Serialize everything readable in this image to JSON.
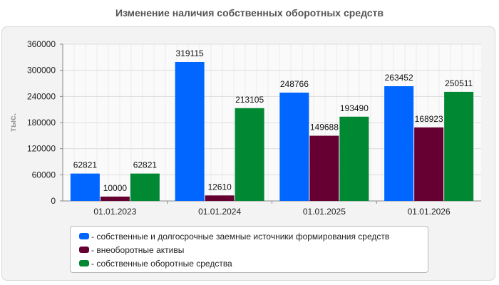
{
  "chart_data": {
    "type": "bar",
    "title": "Изменение наличия собственных оборотных средств",
    "ylabel": "тыс.",
    "xlabel": "",
    "categories": [
      "01.01.2023",
      "01.01.2024",
      "01.01.2025",
      "01.01.2026"
    ],
    "ylim": [
      0,
      360000
    ],
    "yticks": [
      0,
      60000,
      120000,
      180000,
      240000,
      300000,
      360000
    ],
    "series": [
      {
        "name": "- собственные и долгосрочные заемные источники формирования средств",
        "color": "#0066ff",
        "values": [
          62821,
          319115,
          248766,
          263452
        ]
      },
      {
        "name": "- внеоборотные активы",
        "color": "#660033",
        "values": [
          10000,
          12610,
          149688,
          168923
        ]
      },
      {
        "name": "- собственные оборотные средства",
        "color": "#008833",
        "values": [
          62821,
          213105,
          193490,
          250511
        ]
      }
    ],
    "grid": true,
    "legend": "bottom"
  }
}
